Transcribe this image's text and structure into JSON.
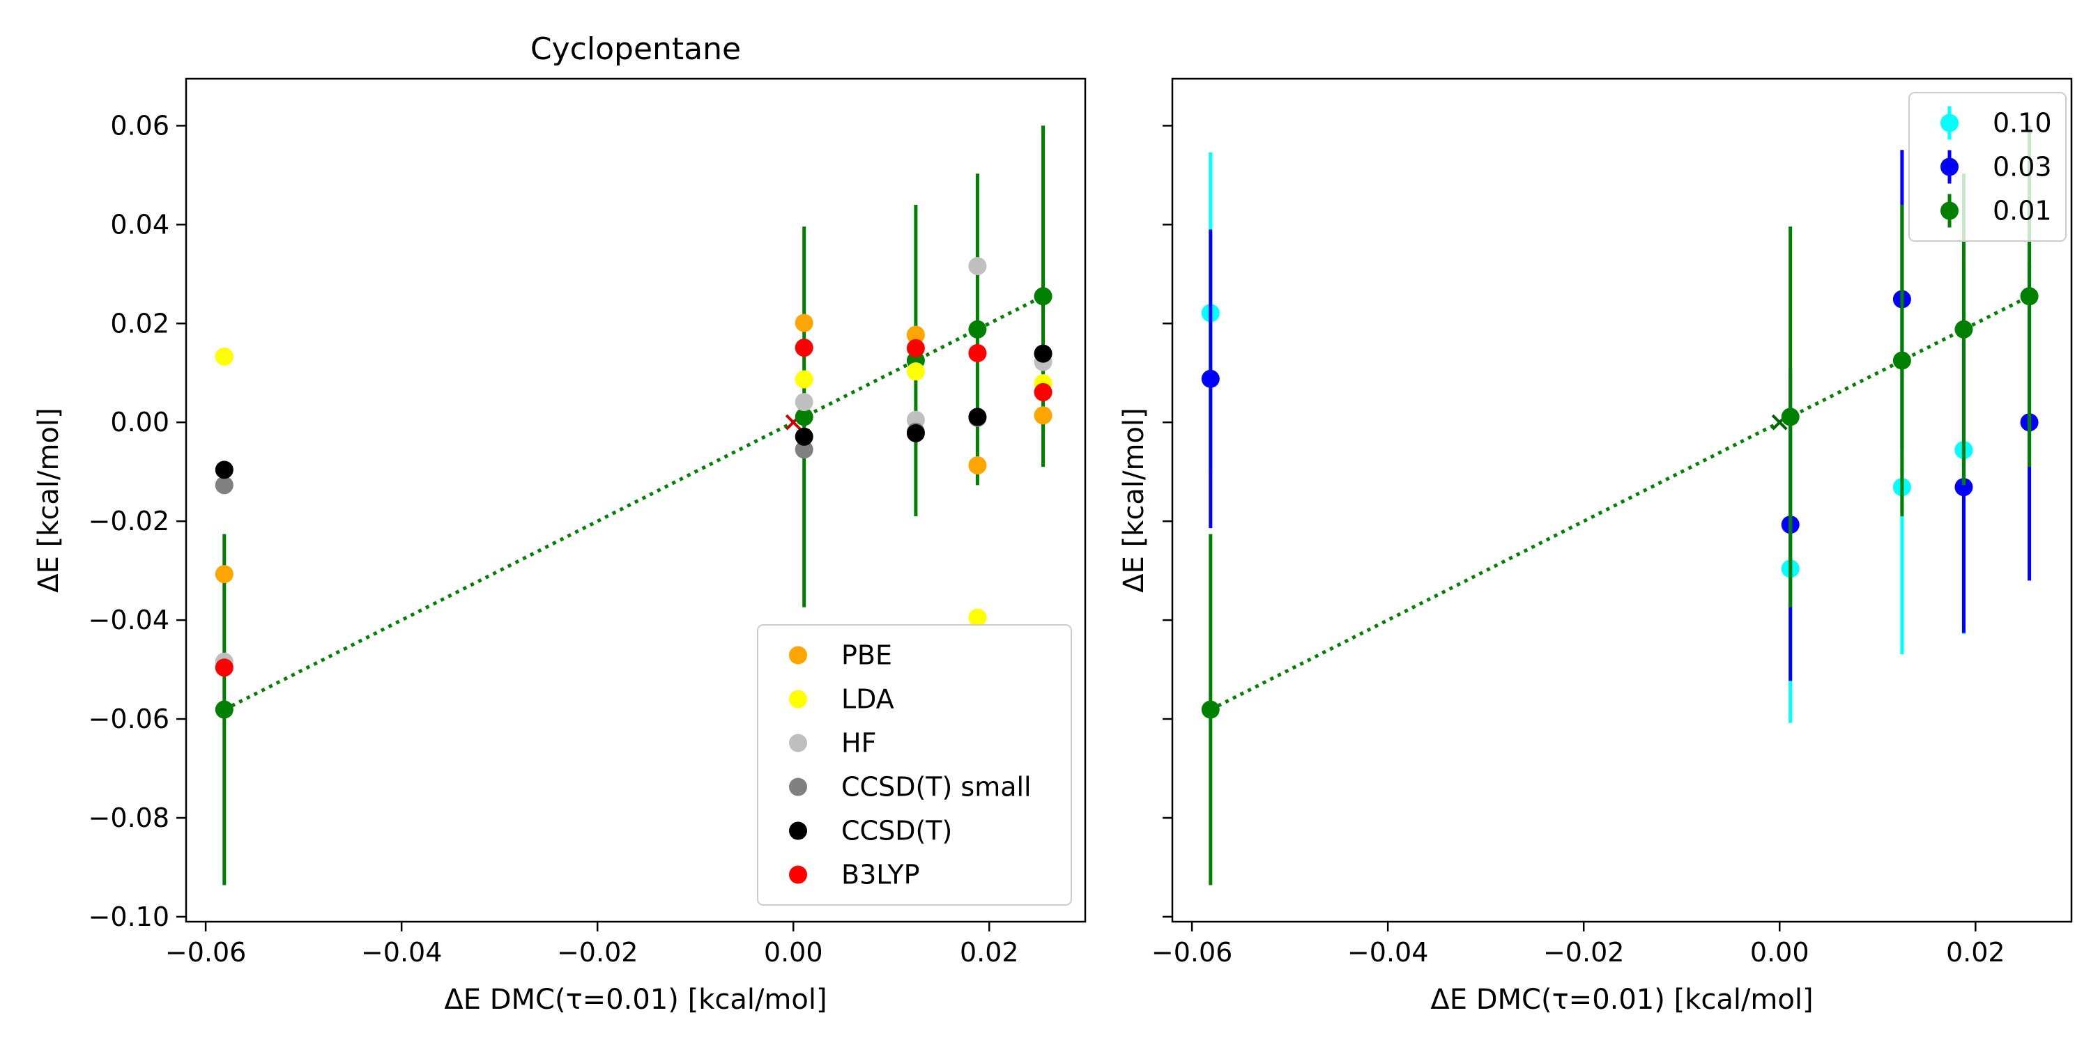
{
  "chart_data": [
    {
      "type": "scatter",
      "title": "Cyclopentane",
      "xlabel": "ΔE DMC(τ=0.01) [kcal/mol]",
      "ylabel": "ΔE [kcal/mol]",
      "xlim": [
        -0.062,
        0.0298
      ],
      "ylim": [
        -0.101,
        0.0695
      ],
      "xticks": [
        -0.06,
        -0.04,
        -0.02,
        0.0,
        0.02
      ],
      "xtick_labels": [
        "−0.06",
        "−0.04",
        "−0.02",
        "0.00",
        "0.02"
      ],
      "yticks": [
        -0.1,
        -0.08,
        -0.06,
        -0.04,
        -0.02,
        0.0,
        0.02,
        0.04,
        0.06
      ],
      "ytick_labels": [
        "−0.10",
        "−0.08",
        "−0.06",
        "−0.04",
        "−0.02",
        "0.00",
        "0.02",
        "0.04",
        "0.06"
      ],
      "show_ytick_labels": true,
      "grid": false,
      "legend_position": "lower-right",
      "x": [
        -0.0581,
        0.0011,
        0.0125,
        0.0188,
        0.0255
      ],
      "fit_line": {
        "x": [
          -0.0581,
          0.0255
        ],
        "y": [
          -0.0581,
          0.0255
        ],
        "color": "#008000",
        "style": "dotted"
      },
      "origin_marker": {
        "x": 0.0,
        "y": 0.0,
        "color": "#cc0000"
      },
      "errorbars": [
        {
          "name": "0.01",
          "color": "#008000",
          "y": [
            -0.0581,
            0.0011,
            0.0125,
            0.0188,
            0.0255
          ],
          "err": [
            0.0355,
            0.0385,
            0.0315,
            0.0315,
            0.0345
          ]
        }
      ],
      "series": [
        {
          "name": "PBE",
          "color": "#ffa500",
          "y": [
            -0.0307,
            0.0201,
            0.0177,
            -0.0087,
            0.0014
          ]
        },
        {
          "name": "LDA",
          "color": "#ffff00",
          "y": [
            0.0133,
            0.0087,
            0.0103,
            -0.0395,
            0.0079
          ]
        },
        {
          "name": "HF",
          "color": "#bfbfbf",
          "y": [
            -0.0484,
            0.0041,
            0.0005,
            0.0316,
            0.0122
          ]
        },
        {
          "name": "CCSD(T) small",
          "color": "#808080",
          "y": [
            -0.0127,
            -0.0055,
            -0.0019,
            0.0009,
            0.0139
          ]
        },
        {
          "name": "CCSD(T)",
          "color": "#000000",
          "y": [
            -0.0096,
            -0.0029,
            -0.0022,
            0.0011,
            0.0139
          ]
        },
        {
          "name": "B3LYP",
          "color": "#ff0000",
          "y": [
            -0.0496,
            0.0151,
            0.015,
            0.014,
            0.0061
          ]
        }
      ]
    },
    {
      "type": "scatter",
      "title": "",
      "xlabel": "ΔE DMC(τ=0.01) [kcal/mol]",
      "ylabel": "ΔE [kcal/mol]",
      "xlim": [
        -0.062,
        0.0298
      ],
      "ylim": [
        -0.101,
        0.0695
      ],
      "xticks": [
        -0.06,
        -0.04,
        -0.02,
        0.0,
        0.02
      ],
      "xtick_labels": [
        "−0.06",
        "−0.04",
        "−0.02",
        "0.00",
        "0.02"
      ],
      "yticks": [
        -0.1,
        -0.08,
        -0.06,
        -0.04,
        -0.02,
        0.0,
        0.02,
        0.04,
        0.06
      ],
      "ytick_labels": [
        "",
        "",
        "",
        "",
        "",
        "",
        "",
        "",
        ""
      ],
      "show_ytick_labels": false,
      "grid": false,
      "legend_position": "upper-right",
      "x": [
        -0.0581,
        0.0011,
        0.0125,
        0.0188,
        0.0255
      ],
      "fit_line": {
        "x": [
          -0.0581,
          0.0255
        ],
        "y": [
          -0.0581,
          0.0255
        ],
        "color": "#008000",
        "style": "dotted"
      },
      "origin_marker": {
        "x": 0.0,
        "y": 0.0,
        "color": "#006400"
      },
      "errorbars": [
        {
          "name": "0.10",
          "color": "#00ffff",
          "y": [
            0.0221,
            -0.0296,
            -0.0131,
            -0.0056,
            0.0255
          ],
          "err": [
            0.0325,
            0.0312,
            0.0338,
            0.0372,
            0.032
          ]
        },
        {
          "name": "0.03",
          "color": "#0000ff",
          "y": [
            0.0088,
            -0.0207,
            0.0249,
            -0.0131,
            0.0
          ],
          "err": [
            0.0302,
            0.0316,
            0.0302,
            0.0295,
            0.032
          ]
        },
        {
          "name": "0.01",
          "color": "#008000",
          "y": [
            -0.0581,
            0.0011,
            0.0125,
            0.0188,
            0.0255
          ],
          "err": [
            0.0355,
            0.0385,
            0.0315,
            0.0315,
            0.0345
          ]
        }
      ],
      "series": []
    }
  ]
}
